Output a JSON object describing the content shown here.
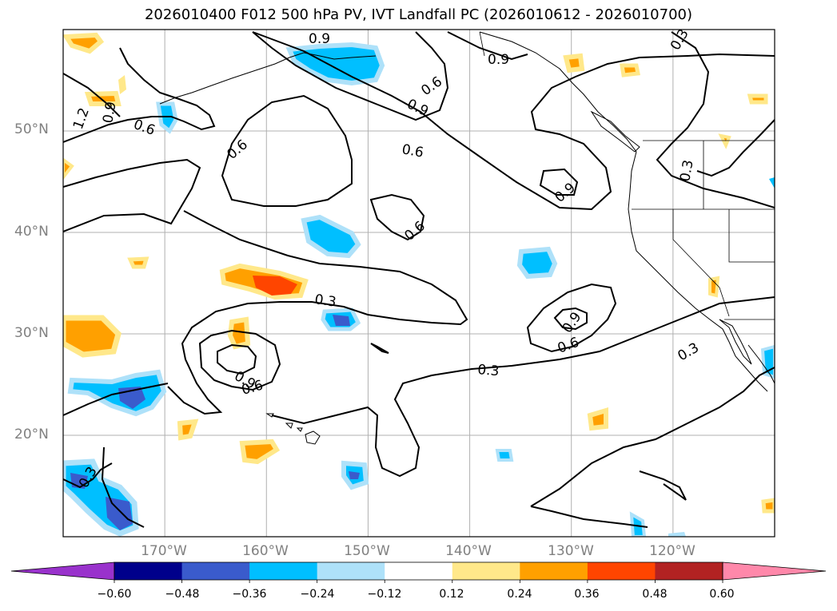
{
  "title": "2026010400 F012 500 hPa PV, IVT Landfall PC (2026010612 - 2026010700)",
  "map": {
    "extent": {
      "lon_min": -180,
      "lon_max": -110,
      "lat_min": 10,
      "lat_max": 60
    },
    "lat_labels": [
      "50°N",
      "40°N",
      "30°N",
      "20°N"
    ],
    "lon_labels": [
      "170°W",
      "160°W",
      "150°W",
      "140°W",
      "130°W",
      "120°W"
    ],
    "grid_lats": [
      50,
      40,
      30,
      20
    ],
    "grid_lons": [
      -170,
      -160,
      -150,
      -140,
      -130,
      -120
    ]
  },
  "contour_labels": [
    "0.9",
    "0.6",
    "0.9",
    "0.3",
    "0.9",
    "1.2",
    "0.9",
    "0.6",
    "0.6",
    "0.6",
    "0.3",
    "0.9",
    "0.6",
    "0.3",
    "0.9",
    "0.6",
    "0.9",
    "0.6",
    "0.3",
    "0.3",
    "0.3"
  ],
  "colorbar": {
    "ticks": [
      "−0.60",
      "−0.48",
      "−0.36",
      "−0.24",
      "−0.12",
      "0.12",
      "0.24",
      "0.36",
      "0.48",
      "0.60"
    ],
    "colors": [
      "#9932cc",
      "#00008b",
      "#3a5bcc",
      "#00bfff",
      "#aee1f9",
      "#ffffff",
      "#ffe88a",
      "#ffa000",
      "#ff4500",
      "#b22222",
      "#ff88aa"
    ]
  }
}
